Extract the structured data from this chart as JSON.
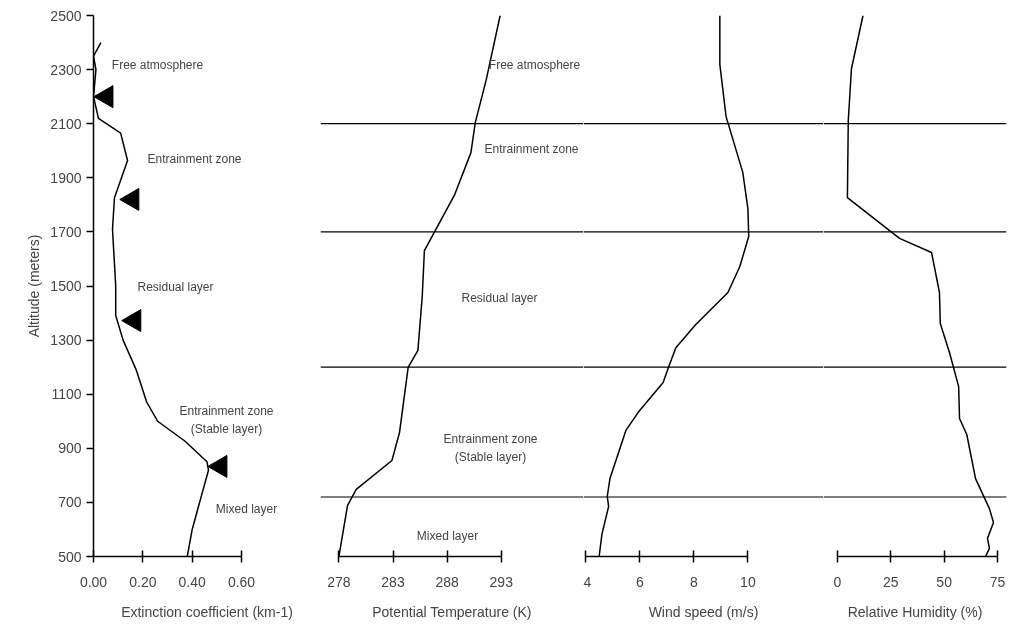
{
  "chart_data": [
    {
      "type": "line",
      "xlabel": "Extinction coefficient (km-1)",
      "ylabel": "Altitude (meters)",
      "xlim": [
        0,
        0.92
      ],
      "xticks": [
        {
          "value": 0,
          "label": "0.00"
        },
        {
          "value": 0.2,
          "label": "0.20"
        },
        {
          "value": 0.4,
          "label": "0.40"
        },
        {
          "value": 0.6,
          "label": "0.60"
        }
      ],
      "ylim": [
        500,
        2500
      ],
      "yticks": [
        500,
        700,
        900,
        1100,
        1300,
        1500,
        1700,
        1900,
        2100,
        2300,
        2500
      ],
      "grid": false,
      "series": [
        {
          "color": "#000000",
          "x": [
            0.38,
            0.4,
            0.43,
            0.466,
            0.46,
            0.37,
            0.26,
            0.215,
            0.174,
            0.12,
            0.09,
            0.09,
            0.077,
            0.085,
            0.138,
            0.11,
            0.02,
            0.0,
            0.01,
            0.0,
            0.03
          ],
          "values": [
            500,
            600,
            700,
            819,
            850,
            927,
            1000,
            1072,
            1188,
            1300,
            1391,
            1500,
            1710,
            1826,
            1964,
            2065,
            2120,
            2200,
            2300,
            2350,
            2400
          ]
        },
        {
          "type": "scatter",
          "marker": "triangle",
          "color": "#000000",
          "x": [
            0.053,
            0.158,
            0.166,
            0.515
          ],
          "values": [
            2200,
            1820,
            1372,
            833
          ]
        }
      ],
      "annotations": [
        "Free atmosphere",
        "Entrainment zone",
        "Residual layer",
        "Entrainment zone\n(Stable layer)",
        "Mixed layer"
      ]
    },
    {
      "type": "line",
      "xlabel": "Potential Temperature (K)",
      "xlim": [
        276.3,
        300.6
      ],
      "xticks": [
        278,
        283,
        288,
        293
      ],
      "ylim": [
        500,
        2500
      ],
      "yticks": [
        500,
        700,
        900,
        1100,
        1300,
        1500,
        1700,
        1900,
        2100,
        2300,
        2500
      ],
      "tick_labels": "x",
      "grid": false,
      "series": [
        {
          "color": "#000000",
          "x": [
            278.0,
            278.8,
            279.6,
            282.9,
            283.6,
            284.4,
            285.3,
            285.7,
            285.9,
            286.9,
            288.7,
            290.2,
            290.6,
            291.6,
            292.9
          ],
          "values": [
            500,
            689,
            748,
            855,
            958,
            1199,
            1262,
            1461,
            1631,
            1705,
            1838,
            1993,
            2104,
            2260,
            2500
          ]
        }
      ],
      "ref_lines": [
        {
          "axis": "y",
          "value": 2100,
          "color": "#000000"
        },
        {
          "axis": "y",
          "value": 1700,
          "color": "#000000"
        },
        {
          "axis": "y",
          "value": 1200,
          "color": "#000000"
        },
        {
          "axis": "y",
          "value": 720,
          "color": "#000000"
        }
      ],
      "annotations": [
        "Free atmosphere",
        "Entrainment zone",
        "Residual layer",
        "Entrainment zone\n(Stable layer)",
        "Mixed layer"
      ]
    },
    {
      "type": "line",
      "xlabel": "Wind speed (m/s)",
      "xlim": [
        3.91,
        12.8
      ],
      "xticks": [
        4,
        6,
        8,
        10
      ],
      "ylim": [
        500,
        2500
      ],
      "yticks": [
        500,
        700,
        900,
        1100,
        1300,
        1500,
        1700,
        1900,
        2100,
        2300,
        2500
      ],
      "tick_labels": "x",
      "grid": false,
      "series": [
        {
          "color": "#000000",
          "x": [
            4.49,
            4.59,
            4.84,
            4.79,
            4.89,
            5.48,
            5.93,
            6.86,
            7.07,
            7.33,
            8.07,
            9.26,
            9.7,
            10.03,
            10.0,
            9.81,
            9.19,
            8.96,
            8.96
          ],
          "values": [
            500,
            581,
            685,
            722,
            788,
            966,
            1032,
            1143,
            1202,
            1272,
            1358,
            1476,
            1572,
            1683,
            1786,
            1920,
            2127,
            2319,
            2500
          ]
        }
      ],
      "ref_lines": [
        {
          "axis": "y",
          "value": 2100,
          "color": "#000000"
        },
        {
          "axis": "y",
          "value": 1700,
          "color": "#000000"
        },
        {
          "axis": "y",
          "value": 1200,
          "color": "#000000"
        },
        {
          "axis": "y",
          "value": 720,
          "color": "#000000"
        }
      ]
    },
    {
      "type": "line",
      "xlabel": "Relative Humidity (%)",
      "xlim": [
        -6.5,
        79.2
      ],
      "xticks": [
        0,
        25,
        50,
        75
      ],
      "ylim": [
        500,
        2500
      ],
      "yticks": [
        500,
        700,
        900,
        1100,
        1300,
        1500,
        1700,
        1900,
        2100,
        2300,
        2500
      ],
      "tick_labels": "x",
      "grid": false,
      "series": [
        {
          "color": "#000000",
          "x": [
            69.4,
            71.2,
            70.3,
            73.1,
            71.2,
            64.7,
            60.6,
            57.2,
            56.8,
            52.5,
            48.2,
            47.8,
            44.1,
            29.1,
            4.7,
            5.1,
            6.6,
            12.0
          ],
          "values": [
            500,
            530,
            567,
            626,
            677,
            788,
            951,
            1010,
            1128,
            1254,
            1361,
            1476,
            1624,
            1676,
            1827,
            2112,
            2304,
            2500
          ]
        }
      ],
      "ref_lines": [
        {
          "axis": "y",
          "value": 2100,
          "color": "#000000"
        },
        {
          "axis": "y",
          "value": 1700,
          "color": "#000000"
        },
        {
          "axis": "y",
          "value": 1200,
          "color": "#000000"
        },
        {
          "axis": "y",
          "value": 720,
          "color": "#000000"
        }
      ]
    }
  ]
}
